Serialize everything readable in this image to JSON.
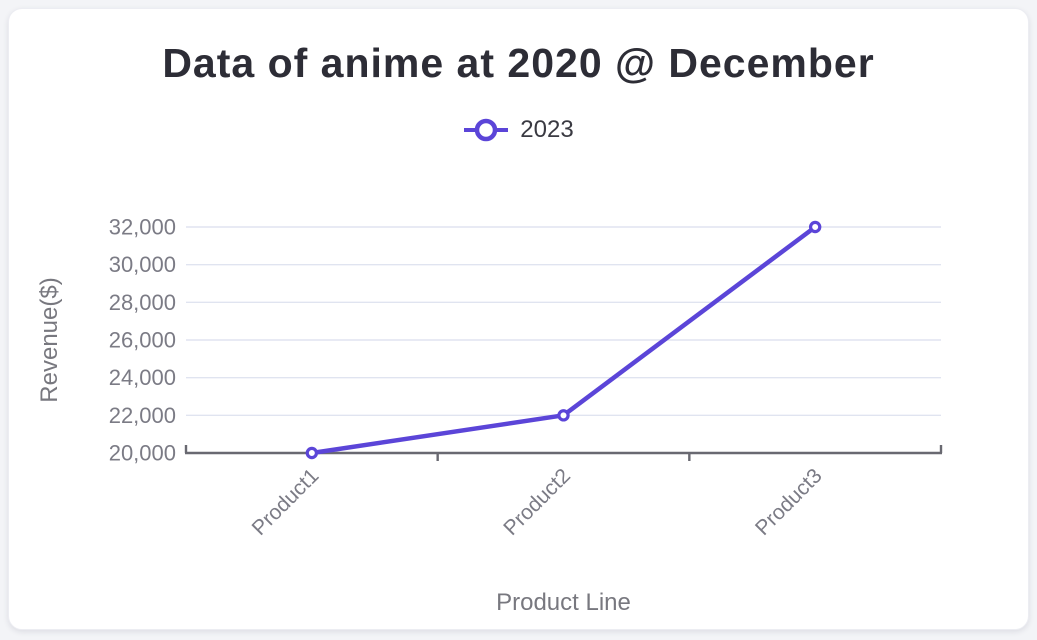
{
  "page": {
    "background_color": "#f3f4f7"
  },
  "card": {
    "background_color": "#ffffff"
  },
  "legend": [
    {
      "label": "2023",
      "marker": "line-circle-icon"
    }
  ],
  "chart_data": {
    "type": "line",
    "title": "Data of anime at 2020 @ December",
    "categories": [
      "Product1",
      "Product2",
      "Product3"
    ],
    "series": [
      {
        "name": "2023",
        "values": [
          20000,
          22000,
          32000
        ]
      }
    ],
    "xlabel": "Product Line",
    "ylabel": "Revenue($)",
    "ylim": [
      20000,
      32000
    ],
    "ytick_step": 2000,
    "ytick_labels": [
      "20,000",
      "22,000",
      "24,000",
      "26,000",
      "28,000",
      "30,000",
      "32,000"
    ],
    "grid": true,
    "legend_position": "top",
    "marker_style": "hollow-circle",
    "colors": {
      "series": "#5b45d8",
      "gridline": "#e0e4f0",
      "axis": "#696971",
      "tick_label": "#7b7b85",
      "axis_title": "#78787f",
      "title": "#2d2d36",
      "legend_label": "#3a3a42"
    }
  }
}
